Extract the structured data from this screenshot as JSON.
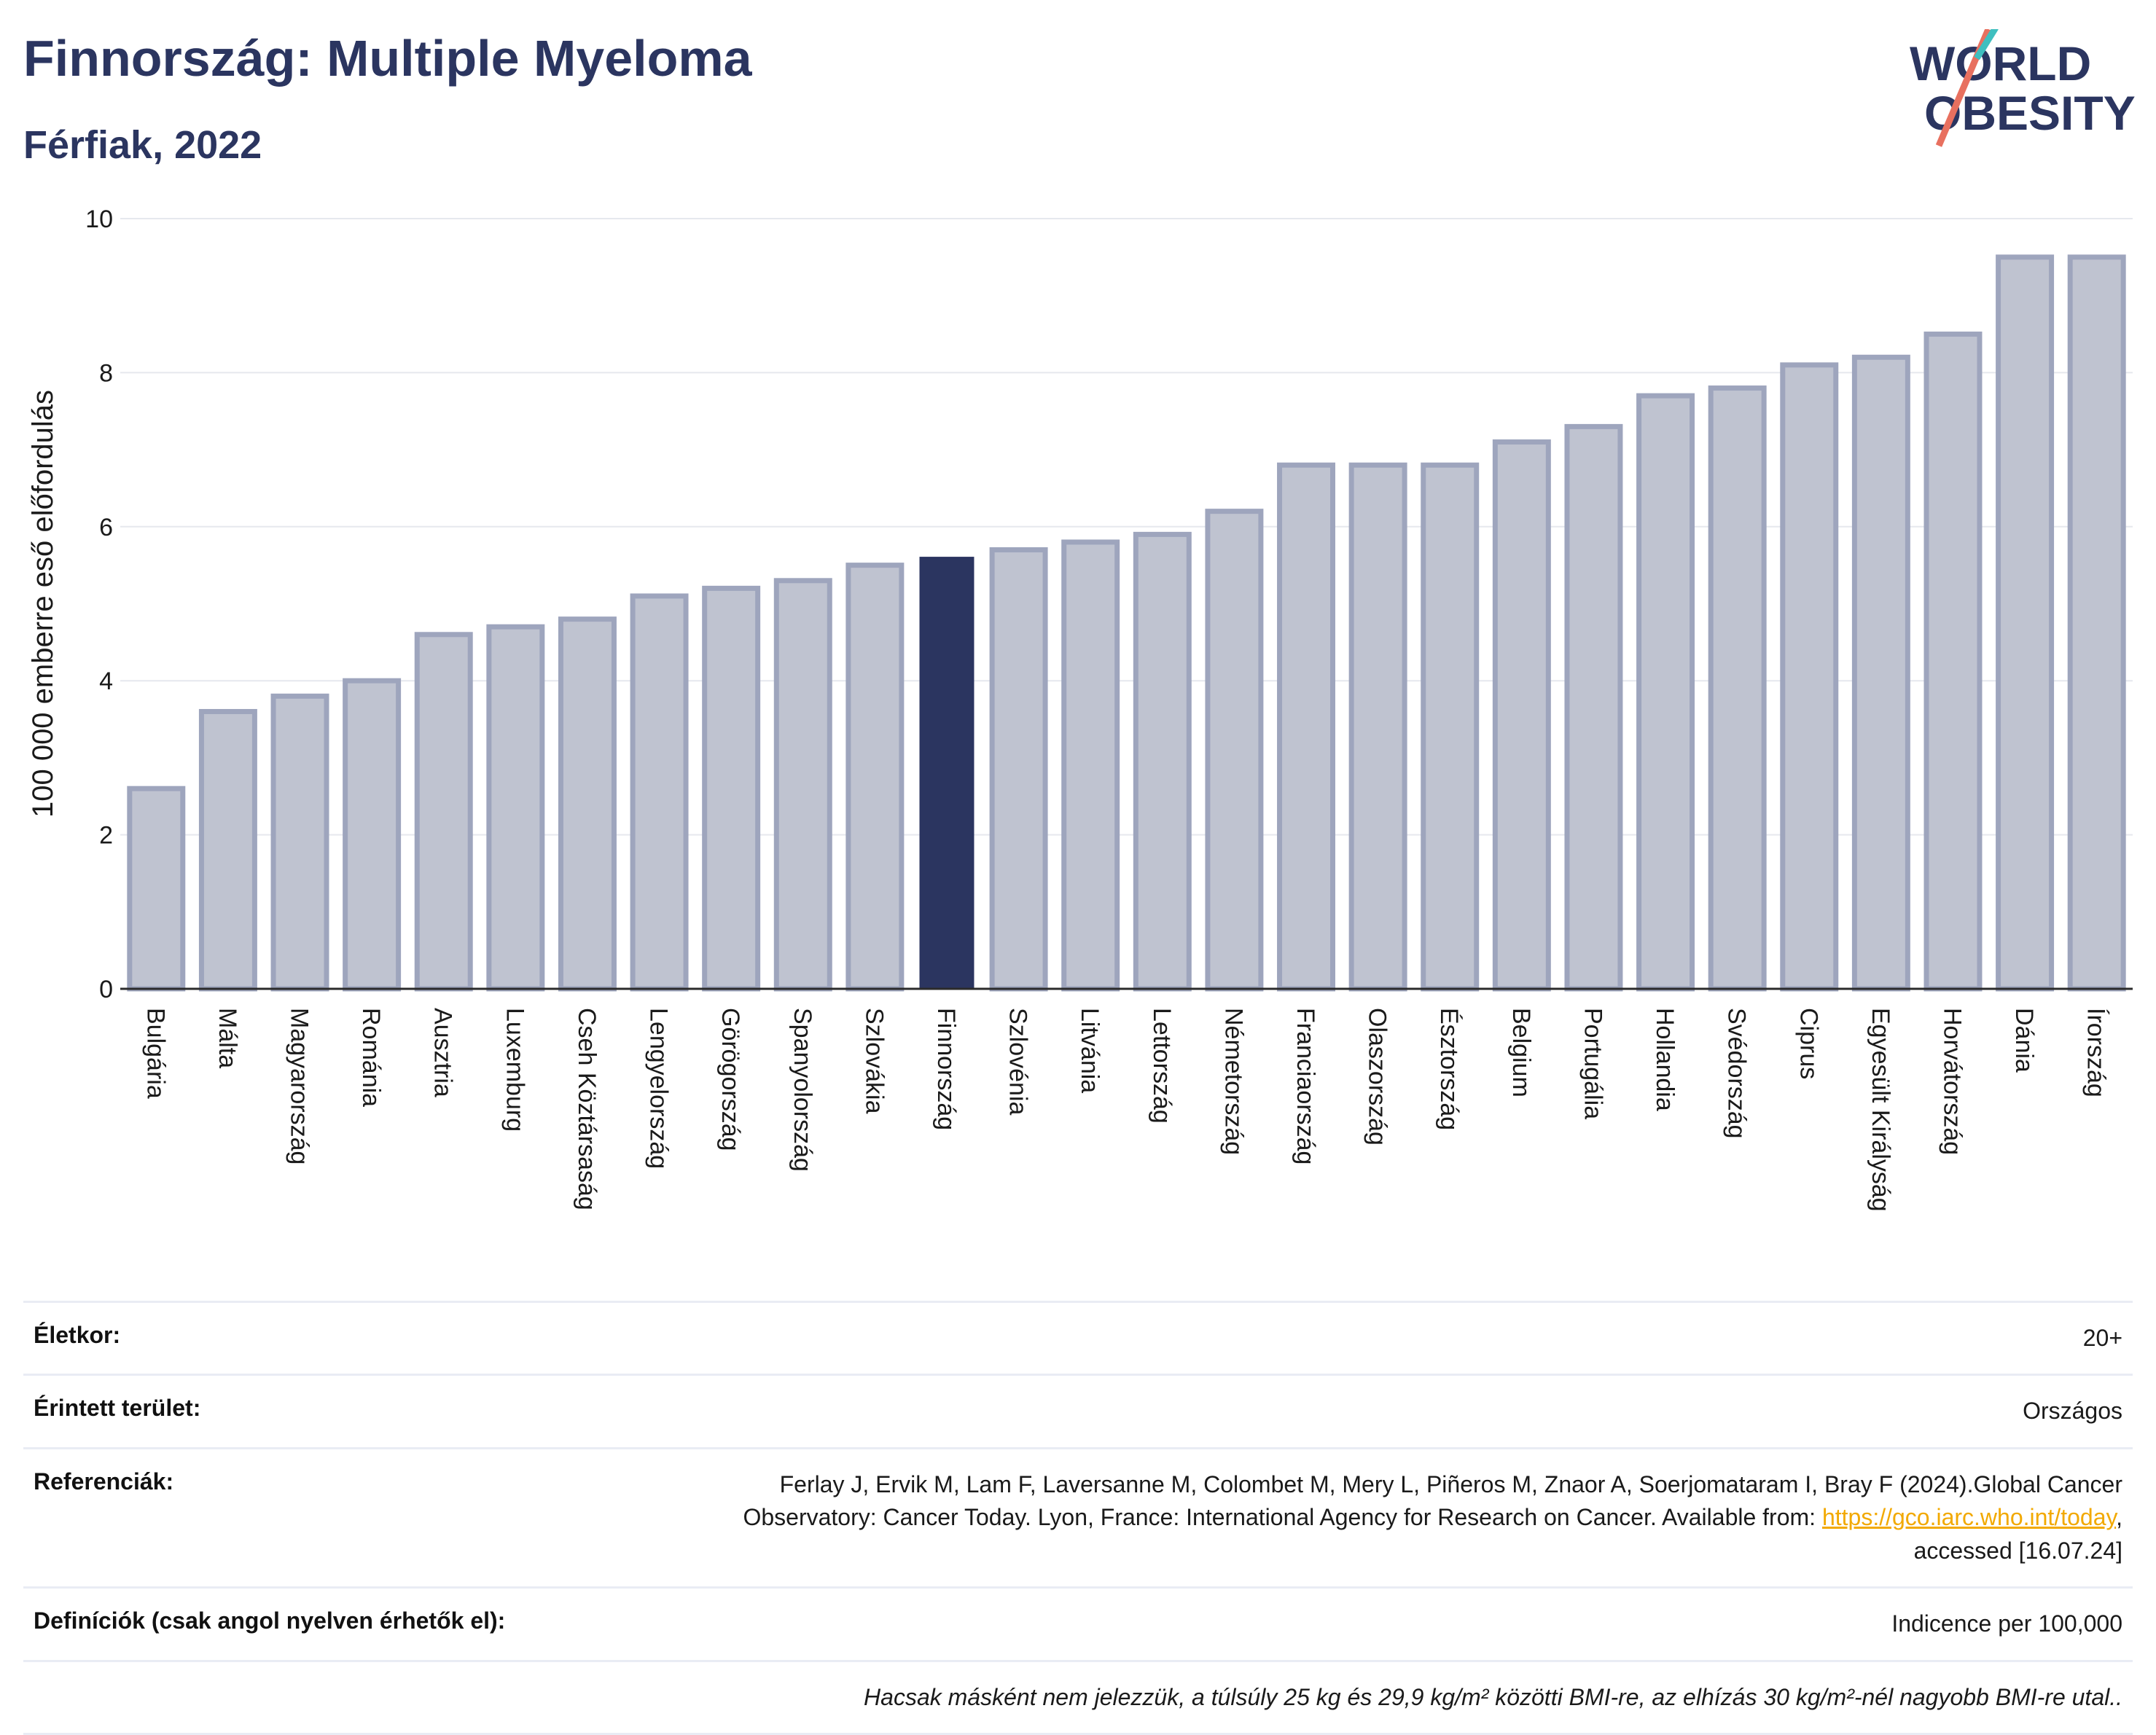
{
  "header": {
    "title": "Finnország: Multiple Myeloma",
    "subtitle": "Férfiak, 2022"
  },
  "logo": {
    "line1": "WORLD",
    "line2": "OBESITY"
  },
  "colors": {
    "bar": "#bfc3d0",
    "bar_border": "#9ea5bd",
    "highlight": "#2b3560",
    "title": "#2b3560",
    "link": "#f2a900"
  },
  "chart_data": {
    "type": "bar",
    "ylabel": "100 000 emberre eső előfordulás",
    "ylim": [
      0,
      10
    ],
    "yticks": [
      0,
      2,
      4,
      6,
      8,
      10
    ],
    "grid": true,
    "highlight": "Finnország",
    "categories": [
      "Bulgária",
      "Málta",
      "Magyarország",
      "Románia",
      "Ausztria",
      "Luxemburg",
      "Cseh Köztársaság",
      "Lengyelország",
      "Görögország",
      "Spanyolország",
      "Szlovákia",
      "Finnország",
      "Szlovénia",
      "Litvánia",
      "Lettország",
      "Németország",
      "Franciaország",
      "Olaszország",
      "Észtország",
      "Belgium",
      "Portugália",
      "Hollandia",
      "Svédország",
      "Ciprus",
      "Egyesült Királyság",
      "Horvátország",
      "Dánia",
      "Írország"
    ],
    "values": [
      2.6,
      3.6,
      3.8,
      4.0,
      4.6,
      4.7,
      4.8,
      5.1,
      5.2,
      5.3,
      5.5,
      5.6,
      5.7,
      5.8,
      5.9,
      6.2,
      6.8,
      6.8,
      6.8,
      7.1,
      7.3,
      7.7,
      7.8,
      8.1,
      8.2,
      8.5,
      9.5,
      9.5
    ]
  },
  "info": {
    "age_label": "Életkor:",
    "age_value": "20+",
    "area_label": "Érintett terület:",
    "area_value": "Országos",
    "ref_label": "Referenciák:",
    "ref_text_1": "Ferlay J, Ervik M, Lam F, Laversanne M, Colombet M, Mery L, Piñeros M, Znaor A, Soerjomataram I, Bray F (2024).Global Cancer",
    "ref_text_2": "Observatory: Cancer Today. Lyon, France: International Agency for Research on Cancer. Available from: ",
    "ref_link": "https://gco.iarc.who.int/today",
    "ref_text_3": ",",
    "ref_text_4": "accessed [16.07.24]",
    "def_label": "Definíciók (csak angol nyelven érhetők el):",
    "def_value": "Indicence per 100,000",
    "note": "Hacsak másként nem jelezzük, a túlsúly 25 kg és 29,9 kg/m² közötti BMI-re, az elhízás 30 kg/m²-nél nagyobb BMI-re utal.."
  }
}
